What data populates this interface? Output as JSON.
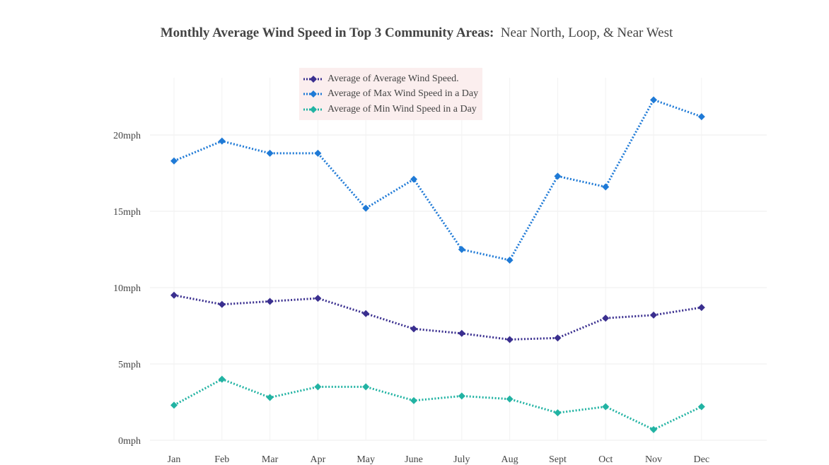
{
  "title": {
    "bold": "Monthly Average Wind Speed in Top 3 Community Areas:",
    "regular": "Near North, Loop, & Near West"
  },
  "chart_data": {
    "type": "line",
    "title": "Monthly Average Wind Speed in Top 3 Community Areas:  Near North, Loop, & Near West",
    "categories": [
      "Jan",
      "Feb",
      "Mar",
      "Apr",
      "May",
      "June",
      "July",
      "Aug",
      "Sept",
      "Oct",
      "Nov",
      "Dec"
    ],
    "y_ticks": [
      0,
      5,
      10,
      15,
      20
    ],
    "y_tick_labels": [
      "0mph",
      "5mph",
      "10mph",
      "15mph",
      "20mph"
    ],
    "ylim": [
      0,
      23
    ],
    "grid": true,
    "legend_position": "top-center",
    "line_style": "dotted",
    "marker": "diamond",
    "series": [
      {
        "name": "Average of Average Wind Speed.",
        "color": "#3a2f8f",
        "values": [
          9.5,
          8.9,
          9.1,
          9.3,
          8.3,
          7.3,
          7.0,
          6.6,
          6.7,
          8.0,
          8.2,
          8.7
        ]
      },
      {
        "name": "Average of Max Wind Speed in a Day",
        "color": "#1f7ad6",
        "values": [
          18.3,
          19.6,
          18.8,
          18.8,
          15.2,
          17.1,
          12.5,
          11.8,
          17.3,
          16.6,
          22.3,
          21.2
        ]
      },
      {
        "name": "Average of Min Wind Speed in a Day",
        "color": "#22b3a3",
        "values": [
          2.3,
          4.0,
          2.8,
          3.5,
          3.5,
          2.6,
          2.9,
          2.7,
          1.8,
          2.2,
          0.7,
          2.2
        ]
      }
    ]
  }
}
